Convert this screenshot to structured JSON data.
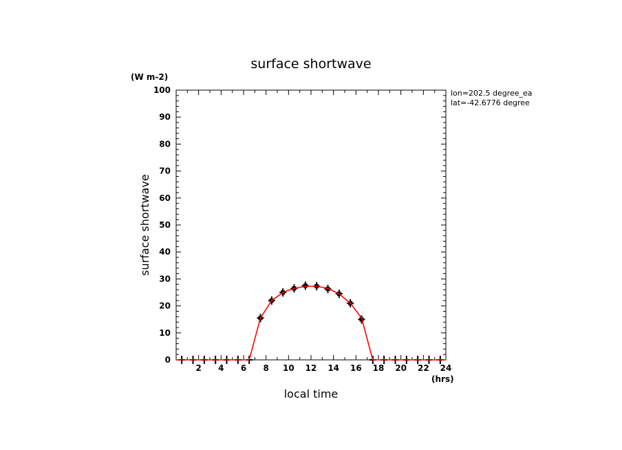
{
  "chart_data": {
    "type": "line",
    "title": "surface shortwave",
    "xlabel": "local time",
    "ylabel": "surface shortwave",
    "y_unit": "(W m-2)",
    "x_unit": "(hrs)",
    "info_lines": [
      "lon=202.5 degree_ea",
      "lat=-42.6776 degree"
    ],
    "xlim": [
      0,
      24
    ],
    "ylim": [
      0,
      100
    ],
    "x_tick_labels": [
      "2",
      "4",
      "6",
      "8",
      "10",
      "12",
      "14",
      "16",
      "18",
      "20",
      "22",
      "24"
    ],
    "y_tick_labels": [
      "0",
      "10",
      "20",
      "30",
      "40",
      "50",
      "60",
      "70",
      "80",
      "90",
      "100"
    ],
    "line_color": "#ff0000",
    "marker_color": "#000000",
    "line": {
      "x": [
        0,
        6.5,
        7.5,
        8.5,
        9.5,
        10.5,
        11.5,
        12.5,
        13.5,
        14.5,
        15.5,
        16.5,
        17.5,
        24
      ],
      "y": [
        0,
        0,
        15.5,
        22,
        25,
        26.5,
        27.3,
        27.3,
        26.5,
        24.5,
        21,
        15.5,
        0,
        0
      ]
    },
    "markers": {
      "x": [
        0.5,
        1.5,
        2.5,
        3.5,
        4.5,
        5.5,
        6.5,
        7.5,
        8.5,
        9.5,
        10.5,
        11.5,
        12.5,
        13.5,
        14.5,
        15.5,
        16.5,
        17.5,
        18.5,
        19.5,
        20.5,
        21.5,
        22.5,
        23.5
      ],
      "y": [
        0,
        0,
        0,
        0,
        0,
        0,
        0,
        15.5,
        22,
        25,
        26.5,
        27.5,
        27.3,
        26.3,
        24.5,
        21,
        15,
        0,
        0,
        0,
        0,
        0,
        0,
        0
      ]
    }
  }
}
